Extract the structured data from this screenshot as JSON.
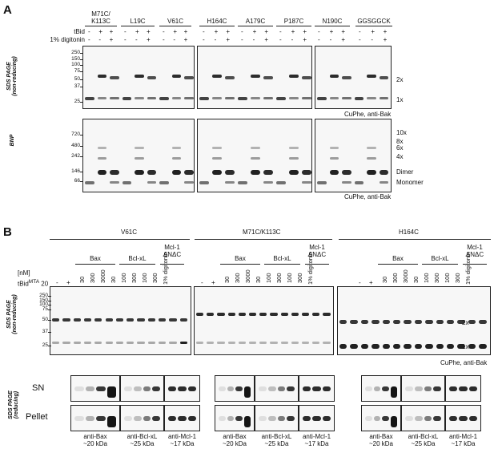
{
  "panelA": {
    "letter": "A",
    "groups": [
      "M71C/\nK113C",
      "L19C",
      "V61C",
      "H164C",
      "A179C",
      "P187C",
      "N190C",
      "GGSGGCK"
    ],
    "row_tbid": "tBid",
    "row_dig": "1% digitonin",
    "signs_tbid": [
      "-",
      "+",
      "+"
    ],
    "signs_dig": [
      "-",
      "-",
      "+"
    ],
    "sds_label": "SDS PAGE\n(non-reducing)",
    "bnp_label": "BNP",
    "sds_mw": [
      "250",
      "150",
      "100",
      "75",
      "50",
      "37",
      "25"
    ],
    "bnp_mw": [
      "720",
      "480",
      "242",
      "146",
      "66"
    ],
    "sds_right": [
      "2x",
      "1x"
    ],
    "bnp_right": [
      "10x",
      "8x",
      "6x",
      "4x",
      "Dimer",
      "Monomer"
    ],
    "caption": "CuPhe, anti-Bak"
  },
  "panelB": {
    "letter": "B",
    "groups": [
      "V61C",
      "M71C/K113C",
      "H164C"
    ],
    "nm": "[nM]",
    "tbid_row": "tBid",
    "tbid_sup": "MTA",
    "tbid_val": "20",
    "signs": [
      "-",
      "+"
    ],
    "conc_bax": [
      "30",
      "300",
      "3000"
    ],
    "conc_bcl": [
      "30",
      "100",
      "300"
    ],
    "conc_mcl": [
      "100",
      "300"
    ],
    "conc_mcl_h": [
      "100",
      "300"
    ],
    "digitonin": "1% digitonin",
    "sub_bax": "Bax",
    "sub_bcl": "Bcl-xL",
    "sub_mcl": "Mcl-1\nΔNΔC",
    "sds_label": "SDS PAGE\n(non-reducing)",
    "sds_mw": [
      "250",
      "150",
      "100",
      "75",
      "50",
      "37",
      "25"
    ],
    "sds_right": [
      "2x",
      "1x"
    ],
    "caption": "CuPhe, anti-Bak",
    "red_label": "SDS PAGE\n(reducing)",
    "sn": "SN",
    "pellet": "Pellet",
    "antibodies": [
      {
        "name": "anti-Bax",
        "size": "~20 kDa"
      },
      {
        "name": "anti-Bcl-xL",
        "size": "~25 kDa"
      },
      {
        "name": "anti-Mcl-1",
        "size": "~17 kDa"
      }
    ]
  }
}
